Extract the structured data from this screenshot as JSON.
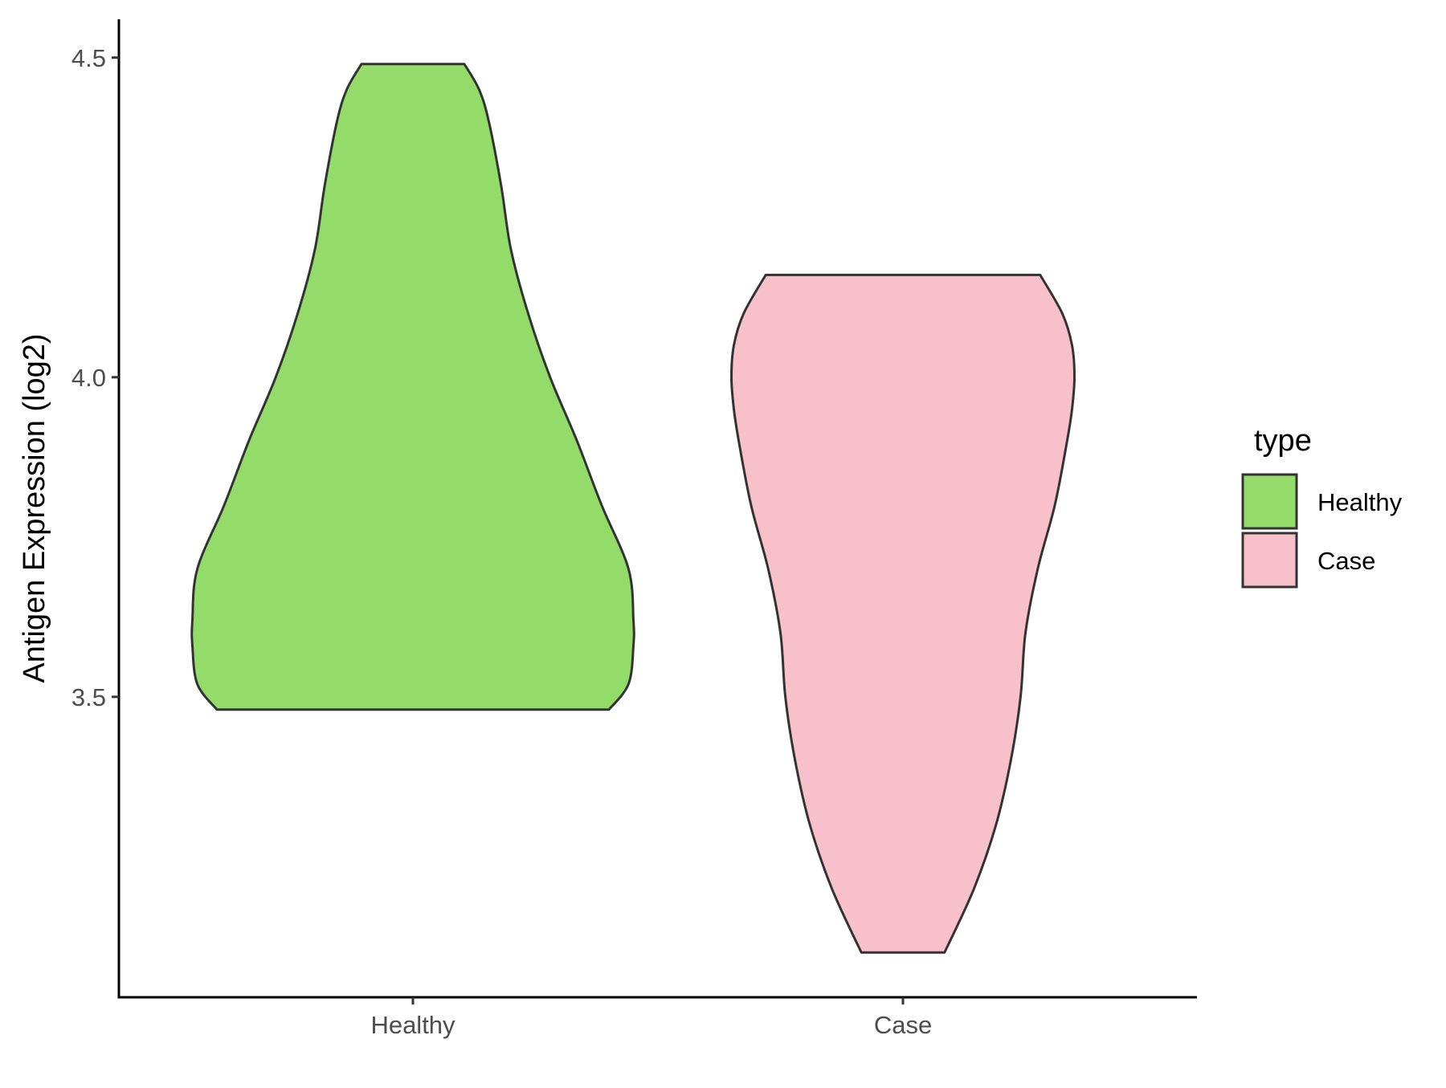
{
  "chart_data": {
    "type": "violin",
    "title": "",
    "xlabel": "",
    "ylabel": "Antigen Expression (log2)",
    "categories": [
      "Healthy",
      "Case"
    ],
    "yticks": [
      "3.5",
      "4.0",
      "4.5"
    ],
    "ylim": [
      3.03,
      4.56
    ],
    "grid": false,
    "legend": {
      "title": "type",
      "position": "right",
      "items": [
        {
          "label": "Healthy",
          "color": "#93DC6A"
        },
        {
          "label": "Case",
          "color": "#F7C0CB"
        }
      ]
    },
    "series": [
      {
        "category": "Healthy",
        "color": "#93DC6A",
        "min": 3.48,
        "max": 4.49,
        "density": [
          [
            3.48,
            0.8
          ],
          [
            3.52,
            0.88
          ],
          [
            3.58,
            0.9
          ],
          [
            3.62,
            0.9
          ],
          [
            3.7,
            0.88
          ],
          [
            3.8,
            0.77
          ],
          [
            3.9,
            0.67
          ],
          [
            4.0,
            0.56
          ],
          [
            4.1,
            0.47
          ],
          [
            4.2,
            0.4
          ],
          [
            4.3,
            0.36
          ],
          [
            4.4,
            0.31
          ],
          [
            4.45,
            0.27
          ],
          [
            4.49,
            0.21
          ]
        ]
      },
      {
        "category": "Case",
        "color": "#F7C0CB",
        "min": 3.1,
        "max": 4.16,
        "density": [
          [
            3.1,
            0.17
          ],
          [
            3.2,
            0.29
          ],
          [
            3.3,
            0.38
          ],
          [
            3.4,
            0.44
          ],
          [
            3.5,
            0.48
          ],
          [
            3.6,
            0.5
          ],
          [
            3.7,
            0.55
          ],
          [
            3.8,
            0.62
          ],
          [
            3.9,
            0.67
          ],
          [
            3.95,
            0.69
          ],
          [
            4.0,
            0.7
          ],
          [
            4.05,
            0.69
          ],
          [
            4.1,
            0.65
          ],
          [
            4.16,
            0.56
          ]
        ]
      }
    ]
  }
}
